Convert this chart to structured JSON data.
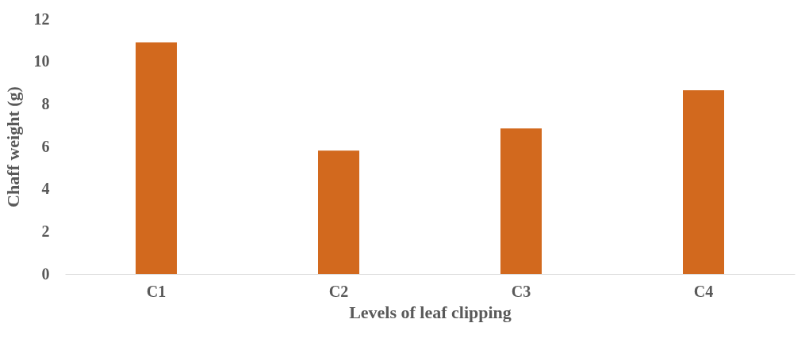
{
  "chart_data": {
    "type": "bar",
    "xlabel": "Levels of leaf clipping",
    "ylabel": "Chaff weight (g)",
    "categories": [
      "C1",
      "C2",
      "C3",
      "C4"
    ],
    "values": [
      10.9,
      5.8,
      6.85,
      8.65
    ],
    "color": "#d2691e",
    "ylim": [
      0,
      12
    ],
    "yticks": [
      0,
      2,
      4,
      6,
      8,
      10,
      12
    ],
    "grid": false
  }
}
